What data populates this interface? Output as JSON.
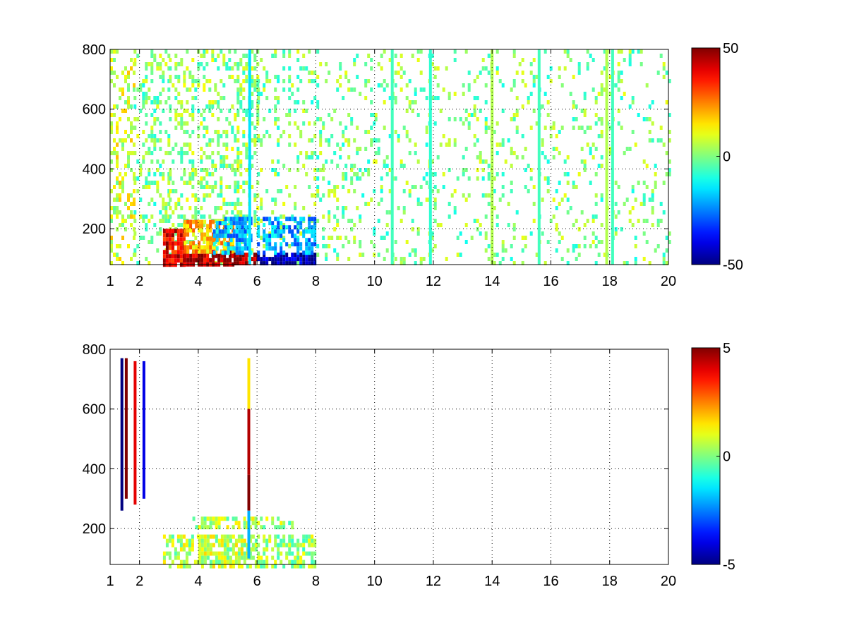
{
  "chart_data": [
    {
      "type": "heatmap",
      "x_ticks": [
        1,
        2,
        4,
        6,
        8,
        10,
        12,
        14,
        16,
        18,
        20
      ],
      "y_ticks": [
        200,
        400,
        600,
        800
      ],
      "xlim": [
        1,
        20
      ],
      "ylim": [
        80,
        800
      ],
      "grid": true,
      "colormap": "jet",
      "colorbar": {
        "min": -50,
        "max": 50,
        "ticks": [
          50,
          0,
          -50
        ]
      },
      "bands": [
        {
          "x": [
            1.0,
            1.8
          ],
          "y": [
            80,
            800
          ],
          "value": 8,
          "density": 0.35
        },
        {
          "x": [
            1.8,
            3.0
          ],
          "y": [
            80,
            800
          ],
          "value": 0,
          "density": 0.3
        },
        {
          "x": [
            3.0,
            6.0
          ],
          "y": [
            80,
            800
          ],
          "value": 2,
          "density": 0.35
        },
        {
          "x": [
            6.0,
            10.0
          ],
          "y": [
            80,
            800
          ],
          "value": 0,
          "density": 0.18
        },
        {
          "x": [
            10.0,
            20.0
          ],
          "y": [
            80,
            800
          ],
          "value": 0,
          "density": 0.13
        },
        {
          "x": [
            2.8,
            3.5
          ],
          "y": [
            80,
            200
          ],
          "value": 40,
          "density": 0.85
        },
        {
          "x": [
            3.5,
            5.2
          ],
          "y": [
            80,
            130
          ],
          "value": 45,
          "density": 0.9
        },
        {
          "x": [
            3.5,
            5.2
          ],
          "y": [
            130,
            230
          ],
          "value": 20,
          "density": 0.75
        },
        {
          "x": [
            5.2,
            6.0
          ],
          "y": [
            80,
            120
          ],
          "value": 48,
          "density": 0.9
        },
        {
          "x": [
            4.5,
            5.8
          ],
          "y": [
            120,
            240
          ],
          "value": -20,
          "density": 0.7
        },
        {
          "x": [
            6.0,
            8.0
          ],
          "y": [
            80,
            120
          ],
          "value": -45,
          "density": 0.85
        },
        {
          "x": [
            6.0,
            8.0
          ],
          "y": [
            120,
            240
          ],
          "value": -22,
          "density": 0.55
        }
      ],
      "vertical_lines": [
        {
          "x": 5.75,
          "y": [
            80,
            800
          ],
          "value": -15
        },
        {
          "x": 10.6,
          "y": [
            80,
            800
          ],
          "value": -6
        },
        {
          "x": 11.9,
          "y": [
            80,
            800
          ],
          "value": -8
        },
        {
          "x": 14.0,
          "y": [
            80,
            800
          ],
          "value": 5
        },
        {
          "x": 15.6,
          "y": [
            80,
            800
          ],
          "value": -6
        },
        {
          "x": 17.9,
          "y": [
            80,
            800
          ],
          "value": 5
        },
        {
          "x": 18.1,
          "y": [
            80,
            800
          ],
          "value": -6
        }
      ]
    },
    {
      "type": "heatmap",
      "x_ticks": [
        1,
        2,
        4,
        6,
        8,
        10,
        12,
        14,
        16,
        18,
        20
      ],
      "y_ticks": [
        200,
        400,
        600,
        800
      ],
      "xlim": [
        1,
        20
      ],
      "ylim": [
        80,
        800
      ],
      "grid": true,
      "colormap": "jet",
      "colorbar": {
        "min": -5,
        "max": 5,
        "ticks": [
          5,
          0,
          -5
        ]
      },
      "bands": [
        {
          "x": [
            2.8,
            4.0
          ],
          "y": [
            80,
            180
          ],
          "value": 0.5,
          "density": 0.55
        },
        {
          "x": [
            4.0,
            6.0
          ],
          "y": [
            80,
            180
          ],
          "value": 0.6,
          "density": 0.75
        },
        {
          "x": [
            6.0,
            8.0
          ],
          "y": [
            80,
            180
          ],
          "value": 0.3,
          "density": 0.6
        },
        {
          "x": [
            3.8,
            6.0
          ],
          "y": [
            200,
            240
          ],
          "value": 0.5,
          "density": 0.6
        },
        {
          "x": [
            6.0,
            7.2
          ],
          "y": [
            200,
            240
          ],
          "value": 0.3,
          "density": 0.4
        }
      ],
      "vertical_lines": [
        {
          "x": 1.4,
          "y": [
            260,
            770
          ],
          "value": -5
        },
        {
          "x": 1.55,
          "y": [
            300,
            770
          ],
          "value": 5
        },
        {
          "x": 1.85,
          "y": [
            280,
            760
          ],
          "value": 4
        },
        {
          "x": 2.15,
          "y": [
            300,
            760
          ],
          "value": -4
        },
        {
          "x": 5.72,
          "y": [
            600,
            770
          ],
          "value": 1.5
        },
        {
          "x": 5.72,
          "y": [
            380,
            600
          ],
          "value": 4.5
        },
        {
          "x": 5.72,
          "y": [
            260,
            380
          ],
          "value": 5
        },
        {
          "x": 5.72,
          "y": [
            100,
            260
          ],
          "value": -2
        }
      ]
    }
  ]
}
